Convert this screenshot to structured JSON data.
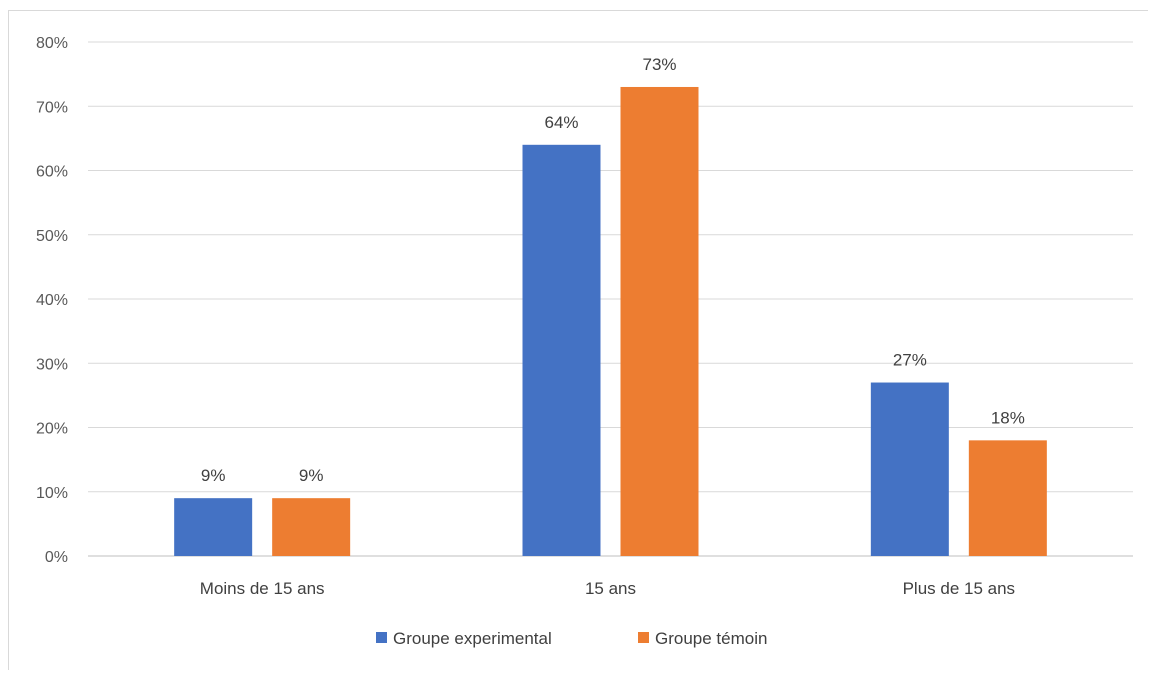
{
  "chart_data": {
    "type": "bar",
    "categories": [
      "Moins de 15 ans",
      "15 ans",
      "Plus de 15 ans"
    ],
    "series": [
      {
        "name": "Groupe experimental",
        "values": [
          9,
          64,
          27
        ],
        "labels": [
          "9%",
          "64%",
          "27%"
        ],
        "color": "#4472c4"
      },
      {
        "name": "Groupe témoin",
        "values": [
          9,
          73,
          18
        ],
        "labels": [
          "9%",
          "73%",
          "18%"
        ],
        "color": "#ed7d31"
      }
    ],
    "yticks": [
      "0%",
      "10%",
      "20%",
      "30%",
      "40%",
      "50%",
      "60%",
      "70%",
      "80%"
    ],
    "ylim": [
      0,
      80
    ],
    "grid": true,
    "legend_position": "bottom",
    "title": "",
    "xlabel": "",
    "ylabel": ""
  }
}
